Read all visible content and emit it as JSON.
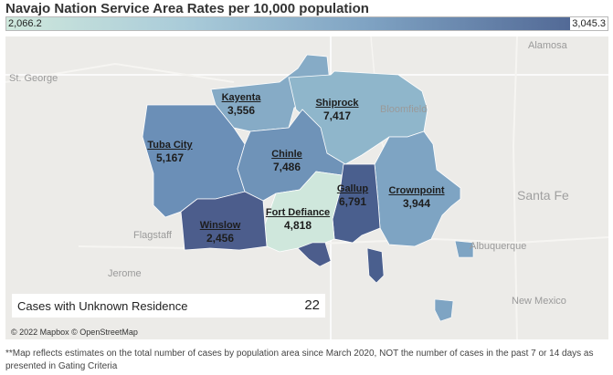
{
  "title": "Navajo Nation Service Area Rates per 10,000 population",
  "legend": {
    "min": "2,066.2",
    "max": "3,045.3"
  },
  "places": {
    "st_george": "St. George",
    "alamosa": "Alamosa",
    "bloomfield": "Bloomfield",
    "santa_fe": "Santa Fe",
    "flagstaff": "Flagstaff",
    "albuquerque": "Albuquerque",
    "jerome": "Jerome",
    "new_mexico": "New Mexico"
  },
  "areas": [
    {
      "key": "kayenta",
      "name": "Kayenta",
      "value": "3,556"
    },
    {
      "key": "shiprock",
      "name": "Shiprock",
      "value": "7,417"
    },
    {
      "key": "tuba_city",
      "name": "Tuba City",
      "value": "5,167"
    },
    {
      "key": "chinle",
      "name": "Chinle",
      "value": "7,486"
    },
    {
      "key": "gallup",
      "name": "Gallup",
      "value": "6,791"
    },
    {
      "key": "crownpoint",
      "name": "Crownpoint",
      "value": "3,944"
    },
    {
      "key": "fort_defiance",
      "name": "Fort Defiance",
      "value": "4,818"
    },
    {
      "key": "winslow",
      "name": "Winslow",
      "value": "2,456"
    }
  ],
  "unknown": {
    "label": "Cases with Unknown Residence",
    "value": "22"
  },
  "attribution": "© 2022 Mapbox © OpenStreetMap",
  "footnote": "**Map reflects estimates on the total number of cases by population area since March 2020, NOT the number of cases in the past 7 or 14 days as presented in Gating Criteria",
  "colors": {
    "kayenta": "#86abc6",
    "shiprock": "#8fb6cb",
    "tuba_city": "#6b8fb7",
    "chinle": "#6f93b8",
    "gallup": "#4a5f8e",
    "crownpoint": "#7ea4c3",
    "fort_defiance": "#cfe7dc",
    "winslow": "#4c5d8c"
  }
}
